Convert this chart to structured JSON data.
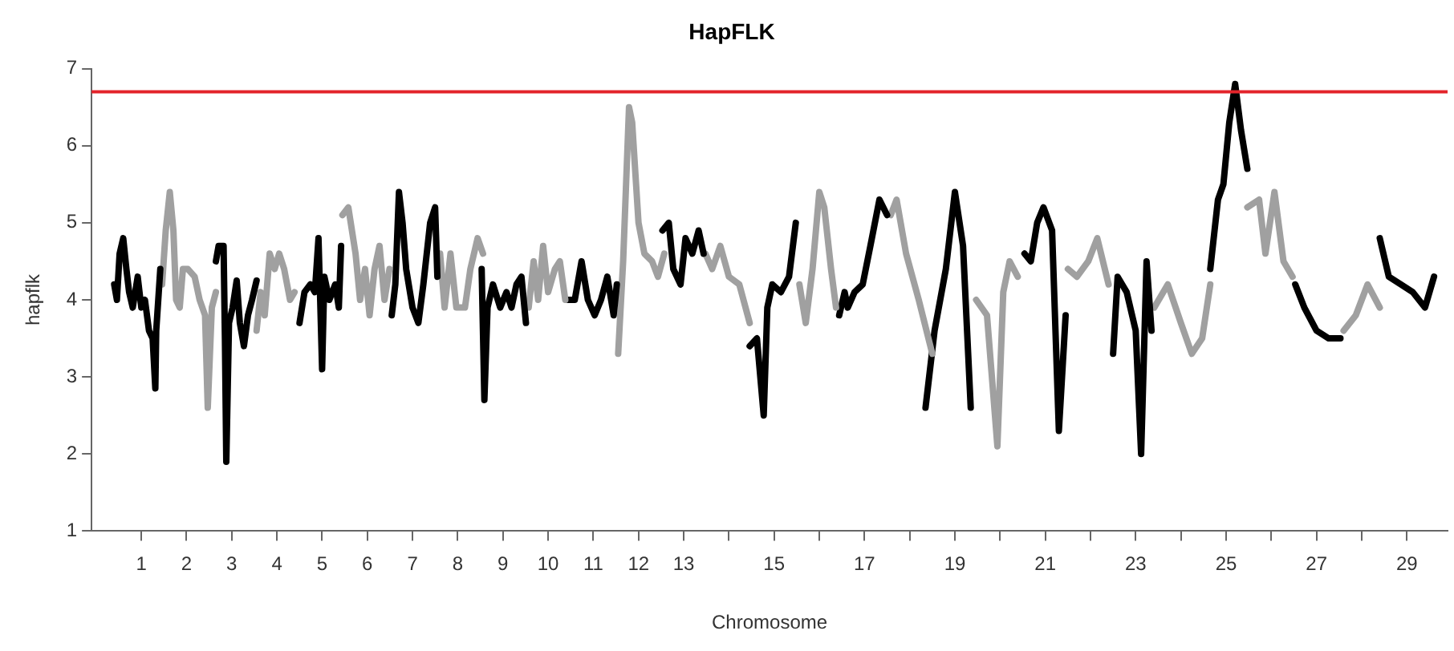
{
  "chart_data": {
    "type": "line",
    "title": "HapFLK",
    "xlabel": "Chromosome",
    "ylabel": "hapflk",
    "xlim": [
      -0.1,
      29.9
    ],
    "ylim": [
      1,
      7
    ],
    "yticks": [
      1,
      2,
      3,
      4,
      5,
      6,
      7
    ],
    "xticks": [
      1,
      2,
      3,
      4,
      5,
      6,
      7,
      8,
      9,
      10,
      11,
      12,
      13,
      {
        "value": 14,
        "label": null
      },
      15,
      {
        "value": 16,
        "label": null
      },
      17,
      {
        "value": 18,
        "label": null
      },
      19,
      {
        "value": 20,
        "label": null
      },
      21,
      {
        "value": 22,
        "label": null
      },
      23,
      {
        "value": 24,
        "label": null
      },
      25,
      {
        "value": 26,
        "label": null
      },
      27,
      {
        "value": 28,
        "label": null
      },
      29
    ],
    "grid": false,
    "legend": false,
    "marker": "none",
    "line_style": "solid",
    "ref_lines": [
      {
        "axis": "y",
        "value": 6.7,
        "color": "#e3242b"
      }
    ],
    "series": [
      {
        "color": "#000000",
        "x": [
          0.4,
          0.46,
          0.52,
          0.6,
          0.67,
          0.73,
          0.81,
          0.92,
          1.0,
          1.08,
          1.17,
          1.25,
          1.31,
          1.33,
          1.42
        ],
        "values": [
          4.2,
          4.0,
          4.6,
          4.8,
          4.4,
          4.1,
          3.9,
          4.3,
          3.9,
          4.0,
          3.6,
          3.5,
          2.85,
          3.6,
          4.4
        ]
      },
      {
        "color": "#a0a0a0",
        "x": [
          1.46,
          1.54,
          1.63,
          1.71,
          1.77,
          1.85,
          1.92,
          2.03,
          2.18,
          2.29,
          2.41,
          2.47,
          2.56,
          2.65
        ],
        "values": [
          4.2,
          4.9,
          5.4,
          4.9,
          4.0,
          3.9,
          4.4,
          4.4,
          4.3,
          4.0,
          3.8,
          2.6,
          3.9,
          4.1
        ]
      },
      {
        "color": "#000000",
        "x": [
          2.65,
          2.71,
          2.82,
          2.85,
          2.88,
          2.94,
          3.02,
          3.11,
          3.18,
          3.27,
          3.36,
          3.45,
          3.55
        ],
        "values": [
          4.5,
          4.7,
          4.7,
          3.5,
          1.9,
          3.7,
          3.9,
          4.25,
          3.7,
          3.4,
          3.8,
          4.0,
          4.25
        ]
      },
      {
        "color": "#a0a0a0",
        "x": [
          3.55,
          3.64,
          3.73,
          3.84,
          3.95,
          4.05,
          4.16,
          4.29,
          4.39
        ],
        "values": [
          3.6,
          4.1,
          3.8,
          4.6,
          4.4,
          4.6,
          4.4,
          4.0,
          4.1
        ]
      },
      {
        "color": "#000000",
        "x": [
          4.5,
          4.61,
          4.74,
          4.84,
          4.92,
          5.0,
          5.05,
          5.16,
          5.29,
          5.37,
          5.42
        ],
        "values": [
          3.7,
          4.1,
          4.2,
          4.1,
          4.8,
          3.1,
          4.3,
          4.0,
          4.2,
          3.9,
          4.7
        ]
      },
      {
        "color": "#a0a0a0",
        "x": [
          5.45,
          5.58,
          5.74,
          5.84,
          5.95,
          6.05,
          6.16,
          6.27,
          6.38,
          6.49
        ],
        "values": [
          5.1,
          5.2,
          4.6,
          4.0,
          4.4,
          3.8,
          4.4,
          4.7,
          4.0,
          4.4
        ]
      },
      {
        "color": "#000000",
        "x": [
          6.54,
          6.62,
          6.7,
          6.78,
          6.86,
          7.0,
          7.13,
          7.24,
          7.39,
          7.5,
          7.55
        ],
        "values": [
          3.8,
          4.2,
          5.4,
          5.0,
          4.4,
          3.9,
          3.7,
          4.2,
          5.0,
          5.2,
          4.3
        ]
      },
      {
        "color": "#a0a0a0",
        "x": [
          7.61,
          7.71,
          7.84,
          7.97,
          8.16,
          8.28,
          8.44,
          8.56
        ],
        "values": [
          4.6,
          3.9,
          4.6,
          3.9,
          3.9,
          4.4,
          4.8,
          4.6
        ]
      },
      {
        "color": "#000000",
        "x": [
          8.53,
          8.59,
          8.66,
          8.78,
          8.94,
          9.08,
          9.19,
          9.3,
          9.41,
          9.51
        ],
        "values": [
          4.4,
          2.7,
          3.9,
          4.2,
          3.9,
          4.1,
          3.9,
          4.2,
          4.3,
          3.7
        ]
      },
      {
        "color": "#a0a0a0",
        "x": [
          9.57,
          9.68,
          9.78,
          9.89,
          10.0,
          10.15,
          10.26,
          10.38
        ],
        "values": [
          3.9,
          4.5,
          4.0,
          4.7,
          4.1,
          4.4,
          4.5,
          4.0
        ]
      },
      {
        "color": "#000000",
        "x": [
          10.44,
          10.59,
          10.74,
          10.88,
          11.03,
          11.17,
          11.31,
          11.45,
          11.52
        ],
        "values": [
          4.0,
          4.0,
          4.5,
          4.0,
          3.8,
          4.0,
          4.3,
          3.8,
          4.2
        ]
      },
      {
        "color": "#a0a0a0",
        "x": [
          11.55,
          11.66,
          11.79,
          11.86,
          12.0,
          12.13,
          12.3,
          12.43,
          12.57
        ],
        "values": [
          3.3,
          4.5,
          6.5,
          6.3,
          5.0,
          4.6,
          4.5,
          4.3,
          4.6
        ]
      },
      {
        "color": "#000000",
        "x": [
          12.53,
          12.67,
          12.77,
          12.93,
          13.04,
          13.19,
          13.33,
          13.44
        ],
        "values": [
          4.9,
          5.0,
          4.4,
          4.2,
          4.8,
          4.6,
          4.9,
          4.6
        ]
      },
      {
        "color": "#a0a0a0",
        "x": [
          13.48,
          13.63,
          13.81,
          14.0,
          14.23,
          14.46
        ],
        "values": [
          4.6,
          4.4,
          4.7,
          4.3,
          4.2,
          3.7
        ]
      },
      {
        "color": "#000000",
        "x": [
          14.46,
          14.62,
          14.77,
          14.85,
          14.96,
          15.15,
          15.33,
          15.48
        ],
        "values": [
          3.4,
          3.5,
          2.5,
          3.9,
          4.2,
          4.1,
          4.3,
          5.0
        ]
      },
      {
        "color": "#a0a0a0",
        "x": [
          15.56,
          15.7,
          15.85,
          16.0,
          16.11,
          16.26,
          16.37
        ],
        "values": [
          4.2,
          3.7,
          4.4,
          5.4,
          5.2,
          4.4,
          3.9
        ]
      },
      {
        "color": "#000000",
        "x": [
          16.44,
          16.56,
          16.63,
          16.78,
          16.96,
          17.13,
          17.33,
          17.5
        ],
        "values": [
          3.8,
          4.1,
          3.9,
          4.1,
          4.2,
          4.7,
          5.3,
          5.1
        ]
      },
      {
        "color": "#a0a0a0",
        "x": [
          17.58,
          17.71,
          17.92,
          18.2,
          18.5
        ],
        "values": [
          5.1,
          5.3,
          4.6,
          4.0,
          3.3
        ]
      },
      {
        "color": "#000000",
        "x": [
          18.35,
          18.55,
          18.8,
          19.0,
          19.18,
          19.35
        ],
        "values": [
          2.6,
          3.6,
          4.4,
          5.4,
          4.7,
          2.6
        ]
      },
      {
        "color": "#a0a0a0",
        "x": [
          19.47,
          19.71,
          19.94,
          20.07,
          20.21,
          20.39
        ],
        "values": [
          4.0,
          3.8,
          2.1,
          4.1,
          4.5,
          4.3
        ]
      },
      {
        "color": "#000000",
        "x": [
          20.54,
          20.68,
          20.82,
          20.96,
          21.15,
          21.3,
          21.45
        ],
        "values": [
          4.6,
          4.5,
          5.0,
          5.2,
          4.9,
          2.3,
          3.8
        ]
      },
      {
        "color": "#a0a0a0",
        "x": [
          21.5,
          21.7,
          21.95,
          22.15,
          22.4
        ],
        "values": [
          4.4,
          4.3,
          4.5,
          4.8,
          4.2
        ]
      },
      {
        "color": "#000000",
        "x": [
          22.5,
          22.6,
          22.8,
          23.0,
          23.12,
          23.24,
          23.35
        ],
        "values": [
          3.3,
          4.3,
          4.1,
          3.6,
          2.0,
          4.5,
          3.6
        ]
      },
      {
        "color": "#a0a0a0",
        "x": [
          23.41,
          23.71,
          24.0,
          24.24,
          24.47,
          24.65
        ],
        "values": [
          3.9,
          4.2,
          3.7,
          3.3,
          3.5,
          4.2
        ]
      },
      {
        "color": "#000000",
        "x": [
          24.65,
          24.82,
          24.94,
          25.07,
          25.2,
          25.33,
          25.47
        ],
        "values": [
          4.4,
          5.3,
          5.5,
          6.3,
          6.8,
          6.2,
          5.7
        ]
      },
      {
        "color": "#a0a0a0",
        "x": [
          25.47,
          25.73,
          25.87,
          26.07,
          26.27,
          26.47
        ],
        "values": [
          5.2,
          5.3,
          4.6,
          5.4,
          4.5,
          4.3
        ]
      },
      {
        "color": "#000000",
        "x": [
          26.53,
          26.73,
          27.0,
          27.27,
          27.53
        ],
        "values": [
          4.2,
          3.9,
          3.6,
          3.5,
          3.5
        ]
      },
      {
        "color": "#a0a0a0",
        "x": [
          27.6,
          27.87,
          28.13,
          28.4
        ],
        "values": [
          3.6,
          3.8,
          4.2,
          3.9
        ]
      },
      {
        "color": "#000000",
        "x": [
          28.4,
          28.6,
          28.87,
          29.13,
          29.4,
          29.6
        ],
        "values": [
          4.8,
          4.3,
          4.2,
          4.1,
          3.9,
          4.3
        ]
      }
    ]
  }
}
